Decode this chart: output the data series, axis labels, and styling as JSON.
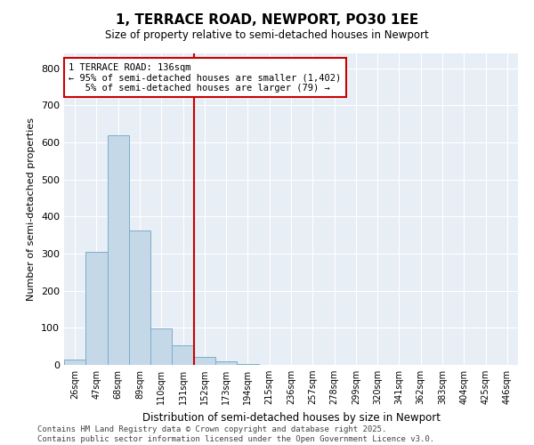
{
  "title": "1, TERRACE ROAD, NEWPORT, PO30 1EE",
  "subtitle": "Size of property relative to semi-detached houses in Newport",
  "xlabel": "Distribution of semi-detached houses by size in Newport",
  "ylabel": "Number of semi-detached properties",
  "bar_color": "#c5d8e8",
  "bar_edge_color": "#7aaec8",
  "background_color": "#e8eef5",
  "categories": [
    "26sqm",
    "47sqm",
    "68sqm",
    "89sqm",
    "110sqm",
    "131sqm",
    "152sqm",
    "173sqm",
    "194sqm",
    "215sqm",
    "236sqm",
    "257sqm",
    "278sqm",
    "299sqm",
    "320sqm",
    "341sqm",
    "362sqm",
    "383sqm",
    "404sqm",
    "425sqm",
    "446sqm"
  ],
  "values": [
    15,
    305,
    620,
    362,
    98,
    52,
    22,
    10,
    3,
    1,
    0,
    0,
    0,
    0,
    0,
    0,
    0,
    0,
    0,
    0,
    0
  ],
  "vline_x": 5.5,
  "vline_color": "#cc0000",
  "annotation_text": "1 TERRACE ROAD: 136sqm\n← 95% of semi-detached houses are smaller (1,402)\n   5% of semi-detached houses are larger (79) →",
  "annotation_box_color": "#cc0000",
  "ylim": [
    0,
    840
  ],
  "yticks": [
    0,
    100,
    200,
    300,
    400,
    500,
    600,
    700,
    800
  ],
  "footer_line1": "Contains HM Land Registry data © Crown copyright and database right 2025.",
  "footer_line2": "Contains public sector information licensed under the Open Government Licence v3.0."
}
